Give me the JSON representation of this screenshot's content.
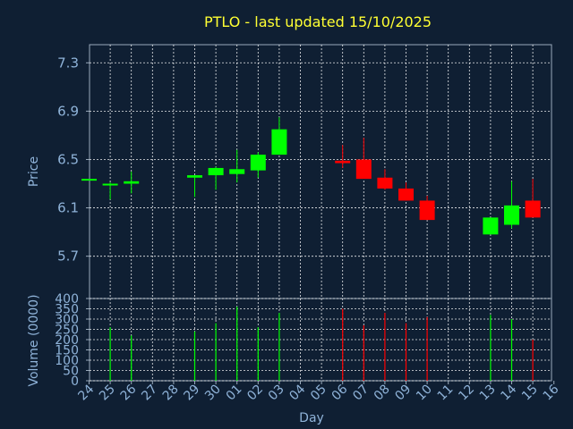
{
  "chart_data": {
    "type": "candlestick",
    "title": "PTLO - last updated 15/10/2025",
    "xlabel": "Day",
    "ylabel": "Price",
    "volume_label": "Volume (0000)",
    "x_ticks": [
      "24",
      "25",
      "26",
      "27",
      "28",
      "29",
      "30",
      "01",
      "02",
      "03",
      "04",
      "05",
      "06",
      "07",
      "08",
      "09",
      "10",
      "11",
      "12",
      "13",
      "14",
      "15",
      "16"
    ],
    "price_ticks": [
      5.7,
      6.1,
      6.5,
      6.9,
      7.3
    ],
    "price_tick_labels": [
      "5.7",
      "6.1",
      "6.5",
      "6.9",
      "7.3"
    ],
    "ylim": [
      5.35,
      7.45
    ],
    "volume_ticks": [
      0,
      50,
      100,
      150,
      200,
      250,
      300,
      350,
      400
    ],
    "volume_ylim": [
      0,
      400
    ],
    "grid": true,
    "colors": {
      "up": "#00ff00",
      "down": "#ff0000",
      "background": "#0f1f33",
      "title": "#ffff33",
      "text": "#8fb3d9"
    },
    "candles": [
      {
        "day": "24",
        "open": 6.33,
        "high": 6.34,
        "low": 6.33,
        "close": 6.34,
        "volume": 0
      },
      {
        "day": "25",
        "open": 6.29,
        "high": 6.31,
        "low": 6.17,
        "close": 6.3,
        "volume": 260
      },
      {
        "day": "26",
        "open": 6.3,
        "high": 6.4,
        "low": 6.22,
        "close": 6.32,
        "volume": 220
      },
      {
        "day": "29",
        "open": 6.35,
        "high": 6.37,
        "low": 6.19,
        "close": 6.37,
        "volume": 240
      },
      {
        "day": "30",
        "open": 6.37,
        "high": 6.44,
        "low": 6.25,
        "close": 6.43,
        "volume": 280
      },
      {
        "day": "01",
        "open": 6.38,
        "high": 6.58,
        "low": 6.31,
        "close": 6.42,
        "volume": 360
      },
      {
        "day": "02",
        "open": 6.41,
        "high": 6.56,
        "low": 6.35,
        "close": 6.54,
        "volume": 260
      },
      {
        "day": "03",
        "open": 6.54,
        "high": 6.85,
        "low": 6.54,
        "close": 6.75,
        "volume": 330
      },
      {
        "day": "06",
        "open": 6.49,
        "high": 6.62,
        "low": 6.43,
        "close": 6.47,
        "volume": 350
      },
      {
        "day": "07",
        "open": 6.5,
        "high": 6.68,
        "low": 6.34,
        "close": 6.34,
        "volume": 270
      },
      {
        "day": "08",
        "open": 6.35,
        "high": 6.42,
        "low": 6.25,
        "close": 6.26,
        "volume": 330
      },
      {
        "day": "09",
        "open": 6.26,
        "high": 6.31,
        "low": 6.16,
        "close": 6.16,
        "volume": 280
      },
      {
        "day": "10",
        "open": 6.16,
        "high": 6.2,
        "low": 6.0,
        "close": 6.0,
        "volume": 310
      },
      {
        "day": "13",
        "open": 5.88,
        "high": 6.02,
        "low": 5.88,
        "close": 6.02,
        "volume": 320
      },
      {
        "day": "14",
        "open": 5.96,
        "high": 6.32,
        "low": 5.93,
        "close": 6.12,
        "volume": 300
      },
      {
        "day": "15",
        "open": 6.16,
        "high": 6.34,
        "low": 6.02,
        "close": 6.02,
        "volume": 200
      }
    ]
  }
}
